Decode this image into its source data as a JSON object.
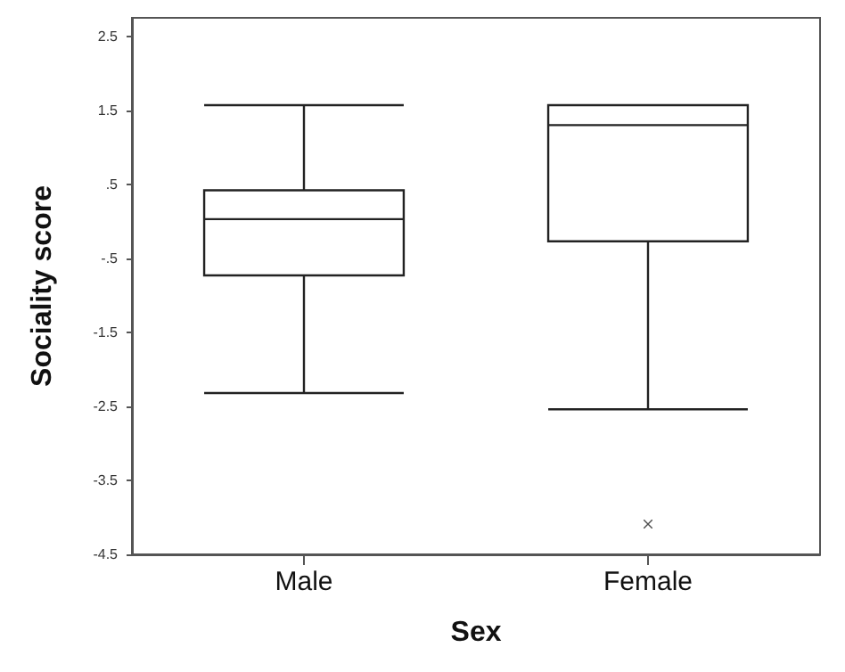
{
  "chart_data": {
    "type": "box",
    "xlabel": "Sex",
    "ylabel": "Sociality score",
    "categories": [
      "Male",
      "Female"
    ],
    "boxes": [
      {
        "low": -2.32,
        "q1": -0.73,
        "median": 0.03,
        "q3": 0.42,
        "high": 1.57
      },
      {
        "low": -2.54,
        "q1": -0.27,
        "median": 1.3,
        "q3": 1.57,
        "high": 1.57,
        "outliers": [
          -4.09
        ]
      }
    ],
    "ylim": [
      -4.5,
      2.75
    ],
    "yticks": [
      {
        "value": 2.5,
        "label": "2.5"
      },
      {
        "value": 1.5,
        "label": "1.5"
      },
      {
        "value": 0.5,
        "label": ".5"
      },
      {
        "value": -0.5,
        "label": "-.5"
      },
      {
        "value": -1.5,
        "label": "-1.5"
      },
      {
        "value": -2.5,
        "label": "-2.5"
      },
      {
        "value": -3.5,
        "label": "-3.5"
      },
      {
        "value": -4.5,
        "label": "-4.5"
      }
    ],
    "grid": false
  }
}
